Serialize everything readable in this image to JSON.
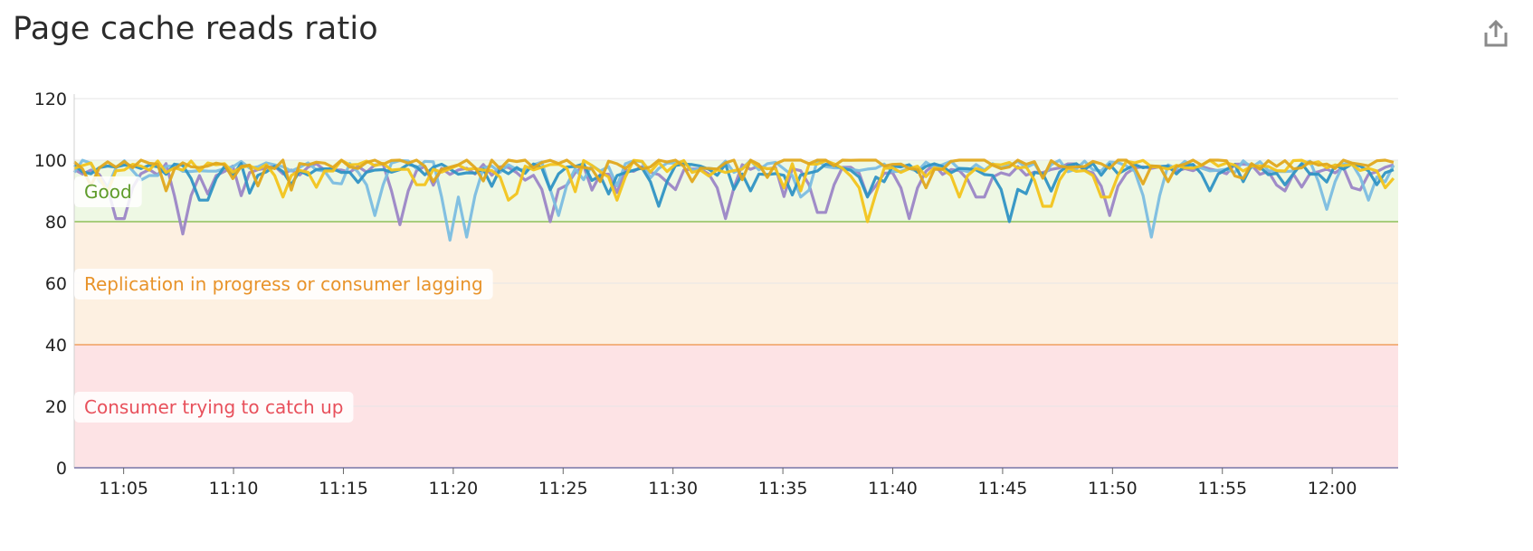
{
  "widget": {
    "title": "Page cache reads ratio",
    "export_icon": "share-export-icon"
  },
  "chart_data": {
    "type": "line",
    "title": "Page cache reads ratio",
    "xlabel": "",
    "ylabel": "",
    "ylim": [
      0,
      120
    ],
    "yticks": [
      "0",
      "20",
      "40",
      "60",
      "80",
      "100",
      "120"
    ],
    "xticks": [
      "11:05",
      "11:10",
      "11:15",
      "11:20",
      "11:25",
      "11:30",
      "11:35",
      "11:40",
      "11:45",
      "11:50",
      "11:55",
      "12:00"
    ],
    "x_range": [
      "11:02:45",
      "12:03:00"
    ],
    "grid": true,
    "legend": "none",
    "markers": [
      {
        "label": "Good",
        "from": 80,
        "to": 100,
        "fill": "#eef8e4",
        "line": "#8fbf5a",
        "text_color": "#5f9c2b"
      },
      {
        "label": "Replication in progress or consumer lagging",
        "from": 40,
        "to": 80,
        "fill": "#fdf0e1",
        "line": "#f0a060",
        "text_color": "#e8932a"
      },
      {
        "label": "Consumer trying to catch up",
        "from": 0,
        "to": 40,
        "fill": "#fde3e5",
        "line": "#e5a0a5",
        "text_color": "#e8505b"
      }
    ],
    "series": [
      {
        "color": "#9b86c6",
        "baseline": 97,
        "dips": [
          [
            "11:04:50",
            81
          ],
          [
            "11:07:45",
            76
          ],
          [
            "11:08:45",
            89
          ],
          [
            "11:17:40",
            79
          ],
          [
            "11:24:20",
            80
          ],
          [
            "11:32:20",
            81
          ],
          [
            "11:36:45",
            83
          ],
          [
            "11:40:45",
            81
          ],
          [
            "11:44:00",
            88
          ],
          [
            "11:49:50",
            82
          ],
          [
            "11:58:00",
            90
          ]
        ]
      },
      {
        "color": "#7bbde0",
        "baseline": 98,
        "dips": [
          [
            "11:06:20",
            95
          ],
          [
            "11:16:20",
            82
          ],
          [
            "11:20:00",
            74
          ],
          [
            "11:20:40",
            75
          ],
          [
            "11:24:40",
            82
          ],
          [
            "11:35:40",
            88
          ],
          [
            "11:51:40",
            75
          ],
          [
            "11:59:40",
            84
          ],
          [
            "12:01:30",
            87
          ]
        ]
      },
      {
        "color": "#2f93c4",
        "baseline": 97,
        "dips": [
          [
            "11:08:40",
            87
          ],
          [
            "11:12:40",
            92
          ],
          [
            "11:27:00",
            89
          ],
          [
            "11:29:30",
            85
          ],
          [
            "11:33:30",
            90
          ],
          [
            "11:39:00",
            88
          ],
          [
            "11:45:20",
            80
          ],
          [
            "11:54:30",
            90
          ],
          [
            "12:02:00",
            92
          ]
        ]
      },
      {
        "color": "#f2c41c",
        "baseline": 98,
        "dips": [
          [
            "11:12:20",
            88
          ],
          [
            "11:18:30",
            92
          ],
          [
            "11:22:30",
            87
          ],
          [
            "11:27:30",
            87
          ],
          [
            "11:38:45",
            80
          ],
          [
            "11:43:00",
            88
          ],
          [
            "11:47:00",
            85
          ],
          [
            "11:49:40",
            88
          ],
          [
            "12:02:30",
            91
          ]
        ]
      },
      {
        "color": "#e0a81c",
        "baseline": 99,
        "dips": [
          [
            "11:10:00",
            94
          ],
          [
            "11:19:00",
            93
          ],
          [
            "11:31:00",
            93
          ],
          [
            "11:41:30",
            91
          ],
          [
            "11:52:30",
            93
          ]
        ]
      }
    ]
  }
}
